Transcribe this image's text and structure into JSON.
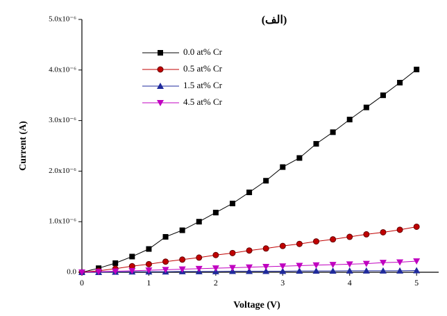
{
  "chart_data": {
    "type": "line",
    "title": "(الف)",
    "x_label": "Voltage (V)",
    "y_label": "Current (A)",
    "x": [
      0,
      0.25,
      0.5,
      0.75,
      1,
      1.25,
      1.5,
      1.75,
      2,
      2.25,
      2.5,
      2.75,
      3,
      3.25,
      3.5,
      3.75,
      4,
      4.25,
      4.5,
      4.75,
      5
    ],
    "series": [
      {
        "name": "0.0 at% Cr",
        "color": "#000000",
        "marker": "square",
        "values": [
          0,
          8e-08,
          1.8e-07,
          3.1e-07,
          4.6e-07,
          7e-07,
          8.3e-07,
          1e-06,
          1.18e-06,
          1.36e-06,
          1.58e-06,
          1.81e-06,
          2.08e-06,
          2.26e-06,
          2.54e-06,
          2.77e-06,
          3.02e-06,
          3.26e-06,
          3.5e-06,
          3.75e-06,
          4.01e-06
        ]
      },
      {
        "name": "0.5 at% Cr",
        "color": "#c00000",
        "marker": "circle",
        "values": [
          0,
          3e-08,
          7e-08,
          1.2e-07,
          1.6e-07,
          2.1e-07,
          2.5e-07,
          2.9e-07,
          3.4e-07,
          3.8e-07,
          4.3e-07,
          4.7e-07,
          5.2e-07,
          5.6e-07,
          6.1e-07,
          6.5e-07,
          7e-07,
          7.5e-07,
          7.9e-07,
          8.4e-07,
          9e-07
        ]
      },
      {
        "name": "1.5 at% Cr",
        "color": "#1f2a9c",
        "marker": "triangle-up",
        "values": [
          0,
          0,
          5e-09,
          1e-08,
          1e-08,
          1e-08,
          1.5e-08,
          1.5e-08,
          1.5e-08,
          2e-08,
          2e-08,
          2e-08,
          2e-08,
          2.5e-08,
          2.5e-08,
          2.5e-08,
          3e-08,
          3e-08,
          3e-08,
          3e-08,
          3.5e-08
        ]
      },
      {
        "name": "4.5 at% Cr",
        "color": "#c000c0",
        "marker": "triangle-down",
        "values": [
          0,
          1e-08,
          2e-08,
          3e-08,
          4e-08,
          5e-08,
          6e-08,
          7e-08,
          8e-08,
          9e-08,
          1e-07,
          1.1e-07,
          1.2e-07,
          1.3e-07,
          1.4e-07,
          1.5e-07,
          1.6e-07,
          1.7e-07,
          1.9e-07,
          2e-07,
          2.2e-07
        ]
      }
    ],
    "xlim": [
      0,
      5.33
    ],
    "xticks": [
      0,
      1,
      2,
      3,
      4,
      5
    ],
    "ylim": [
      0,
      5e-06
    ],
    "yticks": [
      {
        "value": 0,
        "label": "0.0"
      },
      {
        "value": 1e-06,
        "label": "1.0x10⁻⁶"
      },
      {
        "value": 2e-06,
        "label": "2.0x10⁻⁶"
      },
      {
        "value": 3e-06,
        "label": "3.0x10⁻⁶"
      },
      {
        "value": 4e-06,
        "label": "4.0x10⁻⁶"
      },
      {
        "value": 5e-06,
        "label": "5.0x10⁻⁶"
      }
    ],
    "grid": false,
    "legend": "upper-left"
  }
}
